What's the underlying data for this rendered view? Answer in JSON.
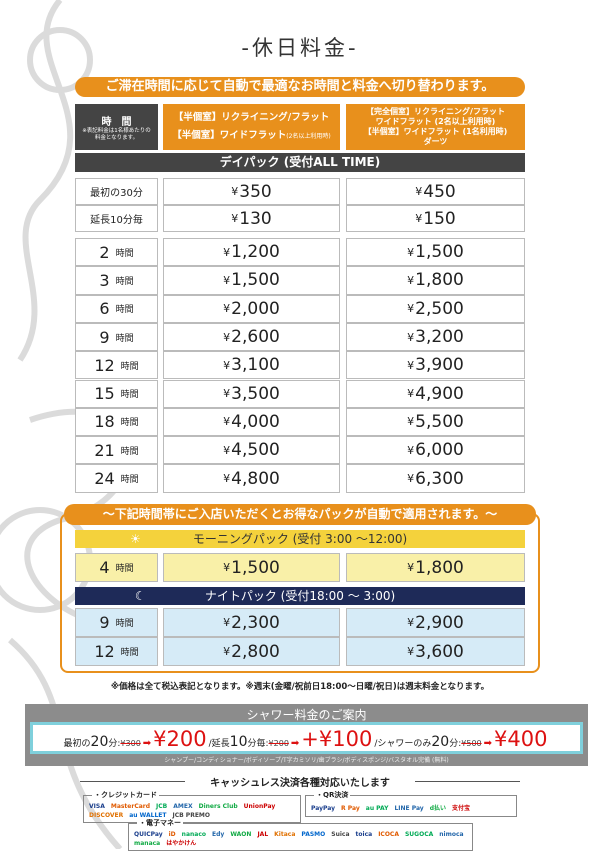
{
  "title": "-休日料金-",
  "banner": "ご滞在時間に応じて自動で最適なお時間と料金へ切り替わります。",
  "header": {
    "time_label": "時　間",
    "time_note": "※表記料金は1名様あたりの料金となります。",
    "col1_line1": "【半個室】リクライニング/フラット",
    "col1_line2": "【半個室】ワイドフラット",
    "col1_note": "(2名以上利用時)",
    "col2_lines": [
      "【完全個室】リクライニング/フラット",
      "ワイドフラット (2名以上利用時)",
      "【半個室】ワイドフラット (1名利用時)",
      "ダーツ"
    ]
  },
  "daypack": {
    "label": "デイパック (受付ALL TIME)",
    "base_rows": [
      {
        "time": "最初の30分",
        "p1": "350",
        "p2": "450"
      },
      {
        "time": "延長10分毎",
        "p1": "130",
        "p2": "150"
      }
    ],
    "rows": [
      {
        "h": "2",
        "p1": "1,200",
        "p2": "1,500"
      },
      {
        "h": "3",
        "p1": "1,500",
        "p2": "1,800"
      },
      {
        "h": "6",
        "p1": "2,000",
        "p2": "2,500"
      },
      {
        "h": "9",
        "p1": "2,600",
        "p2": "3,200"
      },
      {
        "h": "12",
        "p1": "3,100",
        "p2": "3,900"
      },
      {
        "h": "15",
        "p1": "3,500",
        "p2": "4,900"
      },
      {
        "h": "18",
        "p1": "4,000",
        "p2": "5,500"
      },
      {
        "h": "21",
        "p1": "4,500",
        "p2": "6,000"
      },
      {
        "h": "24",
        "p1": "4,800",
        "p2": "6,300"
      }
    ]
  },
  "hour_unit": "時間",
  "yen": "¥",
  "special": {
    "banner": "～下記時間帯にご入店いただくとお得なパックが自動で適用されます。～",
    "morning": {
      "label": "モーニングパック (受付 3:00 ～12:00)",
      "icon": "sun-icon",
      "rows": [
        {
          "h": "4",
          "p1": "1,500",
          "p2": "1,800"
        }
      ]
    },
    "night": {
      "label": "ナイトパック (受付18:00 ～ 3:00)",
      "icon": "moon-icon",
      "rows": [
        {
          "h": "9",
          "p1": "2,300",
          "p2": "2,900"
        },
        {
          "h": "12",
          "p1": "2,800",
          "p2": "3,600"
        }
      ]
    }
  },
  "note": "※価格は全て税込表記となります。※週末(金曜/祝前日18:00～日曜/祝日)は週末料金となります。",
  "shower": {
    "title": "シャワー料金のご案内",
    "first_label": "最初の",
    "first_min": "20",
    "first_unit": "分:",
    "first_old": "¥300",
    "first_new": "¥200",
    "ext_label": "/延長",
    "ext_min": "10",
    "ext_unit": "分毎:",
    "ext_old": "¥200",
    "ext_new": "+¥100",
    "only_label": "/シャワーのみ",
    "only_min": "20",
    "only_unit": "分:",
    "only_old": "¥500",
    "only_new": "¥400",
    "amenities": "シャンプー/コンディショナー/ボディソープ/T字カミソリ/歯ブラシ/ボディスポンジ/バスタオル完備 (無料)"
  },
  "cashless": {
    "title": "キャッシュレス決済各種対応いたします",
    "credit_label": "・クレジットカード",
    "credit": [
      "VISA",
      "MasterCard",
      "JCB",
      "AMEX",
      "Diners Club",
      "UnionPay",
      "DISCOVER",
      "au WALLET",
      "JCB PREMO"
    ],
    "qr_label": "・QR決済",
    "qr": [
      "PayPay",
      "R Pay",
      "au PAY",
      "LINE Pay",
      "d払い",
      "支付宝"
    ],
    "emoney_label": "・電子マネー",
    "emoney": [
      "QUICPay",
      "iD",
      "nanaco",
      "Edy",
      "WAON",
      "JAL",
      "Kitaca",
      "PASMO",
      "Suica",
      "toica",
      "ICOCA",
      "SUGOCA",
      "nimoca",
      "manaca",
      "はやかけん"
    ]
  },
  "colors": {
    "orange": "#e8901c",
    "dark": "#444444",
    "yellow": "#f4d23c",
    "navy": "#1e2a58",
    "light_yellow": "#f9f0a8",
    "light_blue": "#d6ebf7",
    "red": "#dd1111"
  }
}
